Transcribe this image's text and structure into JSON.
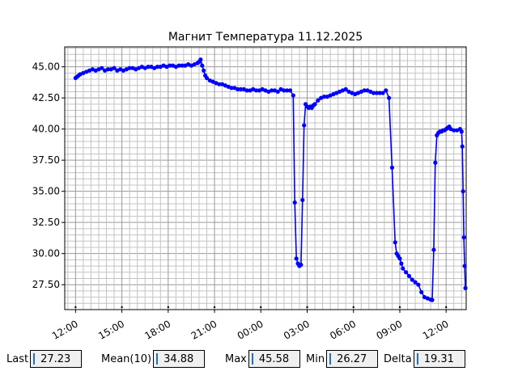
{
  "chart_data": {
    "type": "line",
    "title": "Магнит Температура 11.12.2025",
    "xlabel": "",
    "ylabel": "",
    "x_ticks": [
      "12:00",
      "15:00",
      "18:00",
      "21:00",
      "00:00",
      "03:00",
      "06:00",
      "09:00",
      "12:00"
    ],
    "x_tick_hours": [
      12,
      15,
      18,
      21,
      24,
      27,
      30,
      33,
      36
    ],
    "xlim_hours": [
      11.3,
      37.3
    ],
    "y_ticks": [
      "27.50",
      "30.00",
      "32.50",
      "35.00",
      "37.50",
      "40.00",
      "42.50",
      "45.00"
    ],
    "y_tick_values": [
      27.5,
      30.0,
      32.5,
      35.0,
      37.5,
      40.0,
      42.5,
      45.0
    ],
    "ylim": [
      25.5,
      46.6
    ],
    "grid": true,
    "color": "#0000ff",
    "series": [
      {
        "x_hours": [
          12.0,
          12.1,
          12.2,
          12.3,
          12.5,
          12.7,
          12.9,
          13.1,
          13.3,
          13.5,
          13.7,
          13.9,
          14.1,
          14.3,
          14.5,
          14.7,
          14.9,
          15.1,
          15.3,
          15.5,
          15.7,
          15.9,
          16.1,
          16.3,
          16.5,
          16.7,
          16.9,
          17.1,
          17.3,
          17.5,
          17.7,
          17.9,
          18.1,
          18.3,
          18.5,
          18.7,
          18.9,
          19.1,
          19.3,
          19.5,
          19.7,
          19.9,
          20.0,
          20.1,
          20.2,
          20.3,
          20.4,
          20.5,
          20.7,
          20.9,
          21.1,
          21.3,
          21.5,
          21.7,
          21.9,
          22.1,
          22.3,
          22.5,
          22.7,
          22.9,
          23.1,
          23.3,
          23.5,
          23.7,
          23.9,
          24.1,
          24.3,
          24.5,
          24.7,
          24.9,
          25.1,
          25.3,
          25.5,
          25.7,
          25.9,
          26.1,
          26.2,
          26.3,
          26.4,
          26.5,
          26.6,
          26.7,
          26.8,
          26.9,
          27.0,
          27.1,
          27.2,
          27.3,
          27.4,
          27.5,
          27.7,
          27.9,
          28.1,
          28.3,
          28.5,
          28.7,
          28.9,
          29.1,
          29.3,
          29.5,
          29.7,
          29.9,
          30.1,
          30.3,
          30.5,
          30.7,
          30.9,
          31.1,
          31.3,
          31.5,
          31.7,
          31.9,
          32.1,
          32.3,
          32.5,
          32.7,
          32.8,
          32.9,
          33.0,
          33.1,
          33.2,
          33.4,
          33.6,
          33.8,
          34.0,
          34.2,
          34.4,
          34.6,
          34.8,
          35.0,
          35.1,
          35.2,
          35.3,
          35.4,
          35.5,
          35.6,
          35.7,
          35.8,
          35.9,
          36.0,
          36.1,
          36.2,
          36.3,
          36.5,
          36.7,
          36.9,
          37.0,
          37.05,
          37.1,
          37.15,
          37.2,
          37.25
        ],
        "values": [
          44.1,
          44.2,
          44.3,
          44.4,
          44.5,
          44.6,
          44.7,
          44.8,
          44.7,
          44.8,
          44.9,
          44.7,
          44.8,
          44.8,
          44.9,
          44.7,
          44.8,
          44.7,
          44.8,
          44.9,
          44.9,
          44.8,
          44.9,
          45.0,
          44.9,
          45.0,
          45.0,
          44.9,
          45.0,
          45.0,
          45.1,
          45.0,
          45.1,
          45.1,
          45.0,
          45.1,
          45.1,
          45.1,
          45.2,
          45.1,
          45.2,
          45.3,
          45.4,
          45.58,
          45.1,
          44.7,
          44.3,
          44.1,
          43.9,
          43.8,
          43.7,
          43.6,
          43.6,
          43.5,
          43.4,
          43.3,
          43.3,
          43.2,
          43.2,
          43.2,
          43.1,
          43.1,
          43.2,
          43.1,
          43.1,
          43.2,
          43.1,
          43.0,
          43.1,
          43.1,
          43.0,
          43.2,
          43.1,
          43.1,
          43.1,
          42.7,
          34.1,
          29.6,
          29.2,
          29.0,
          29.1,
          34.3,
          40.3,
          42.0,
          41.8,
          41.7,
          41.8,
          41.7,
          41.9,
          42.0,
          42.3,
          42.5,
          42.6,
          42.6,
          42.7,
          42.8,
          42.9,
          43.0,
          43.1,
          43.2,
          43.0,
          42.9,
          42.8,
          42.9,
          43.0,
          43.1,
          43.1,
          43.0,
          42.9,
          42.9,
          42.9,
          42.9,
          43.1,
          42.5,
          36.9,
          30.9,
          30.0,
          29.8,
          29.6,
          29.2,
          28.8,
          28.5,
          28.2,
          27.9,
          27.7,
          27.5,
          26.9,
          26.5,
          26.4,
          26.3,
          26.27,
          30.3,
          37.3,
          39.5,
          39.7,
          39.8,
          39.8,
          39.9,
          39.9,
          40.0,
          40.1,
          40.2,
          40.0,
          39.9,
          39.9,
          40.0,
          39.8,
          38.6,
          35.0,
          31.3,
          29.0,
          27.23
        ]
      }
    ]
  },
  "stats": {
    "last_label": "Last",
    "last_value": "27.23",
    "mean_label": "Mean(10)",
    "mean_value": "34.88",
    "max_label": "Max",
    "max_value": "45.58",
    "min_label": "Min",
    "min_value": "26.27",
    "delta_label": "Delta",
    "delta_value": "19.31"
  }
}
